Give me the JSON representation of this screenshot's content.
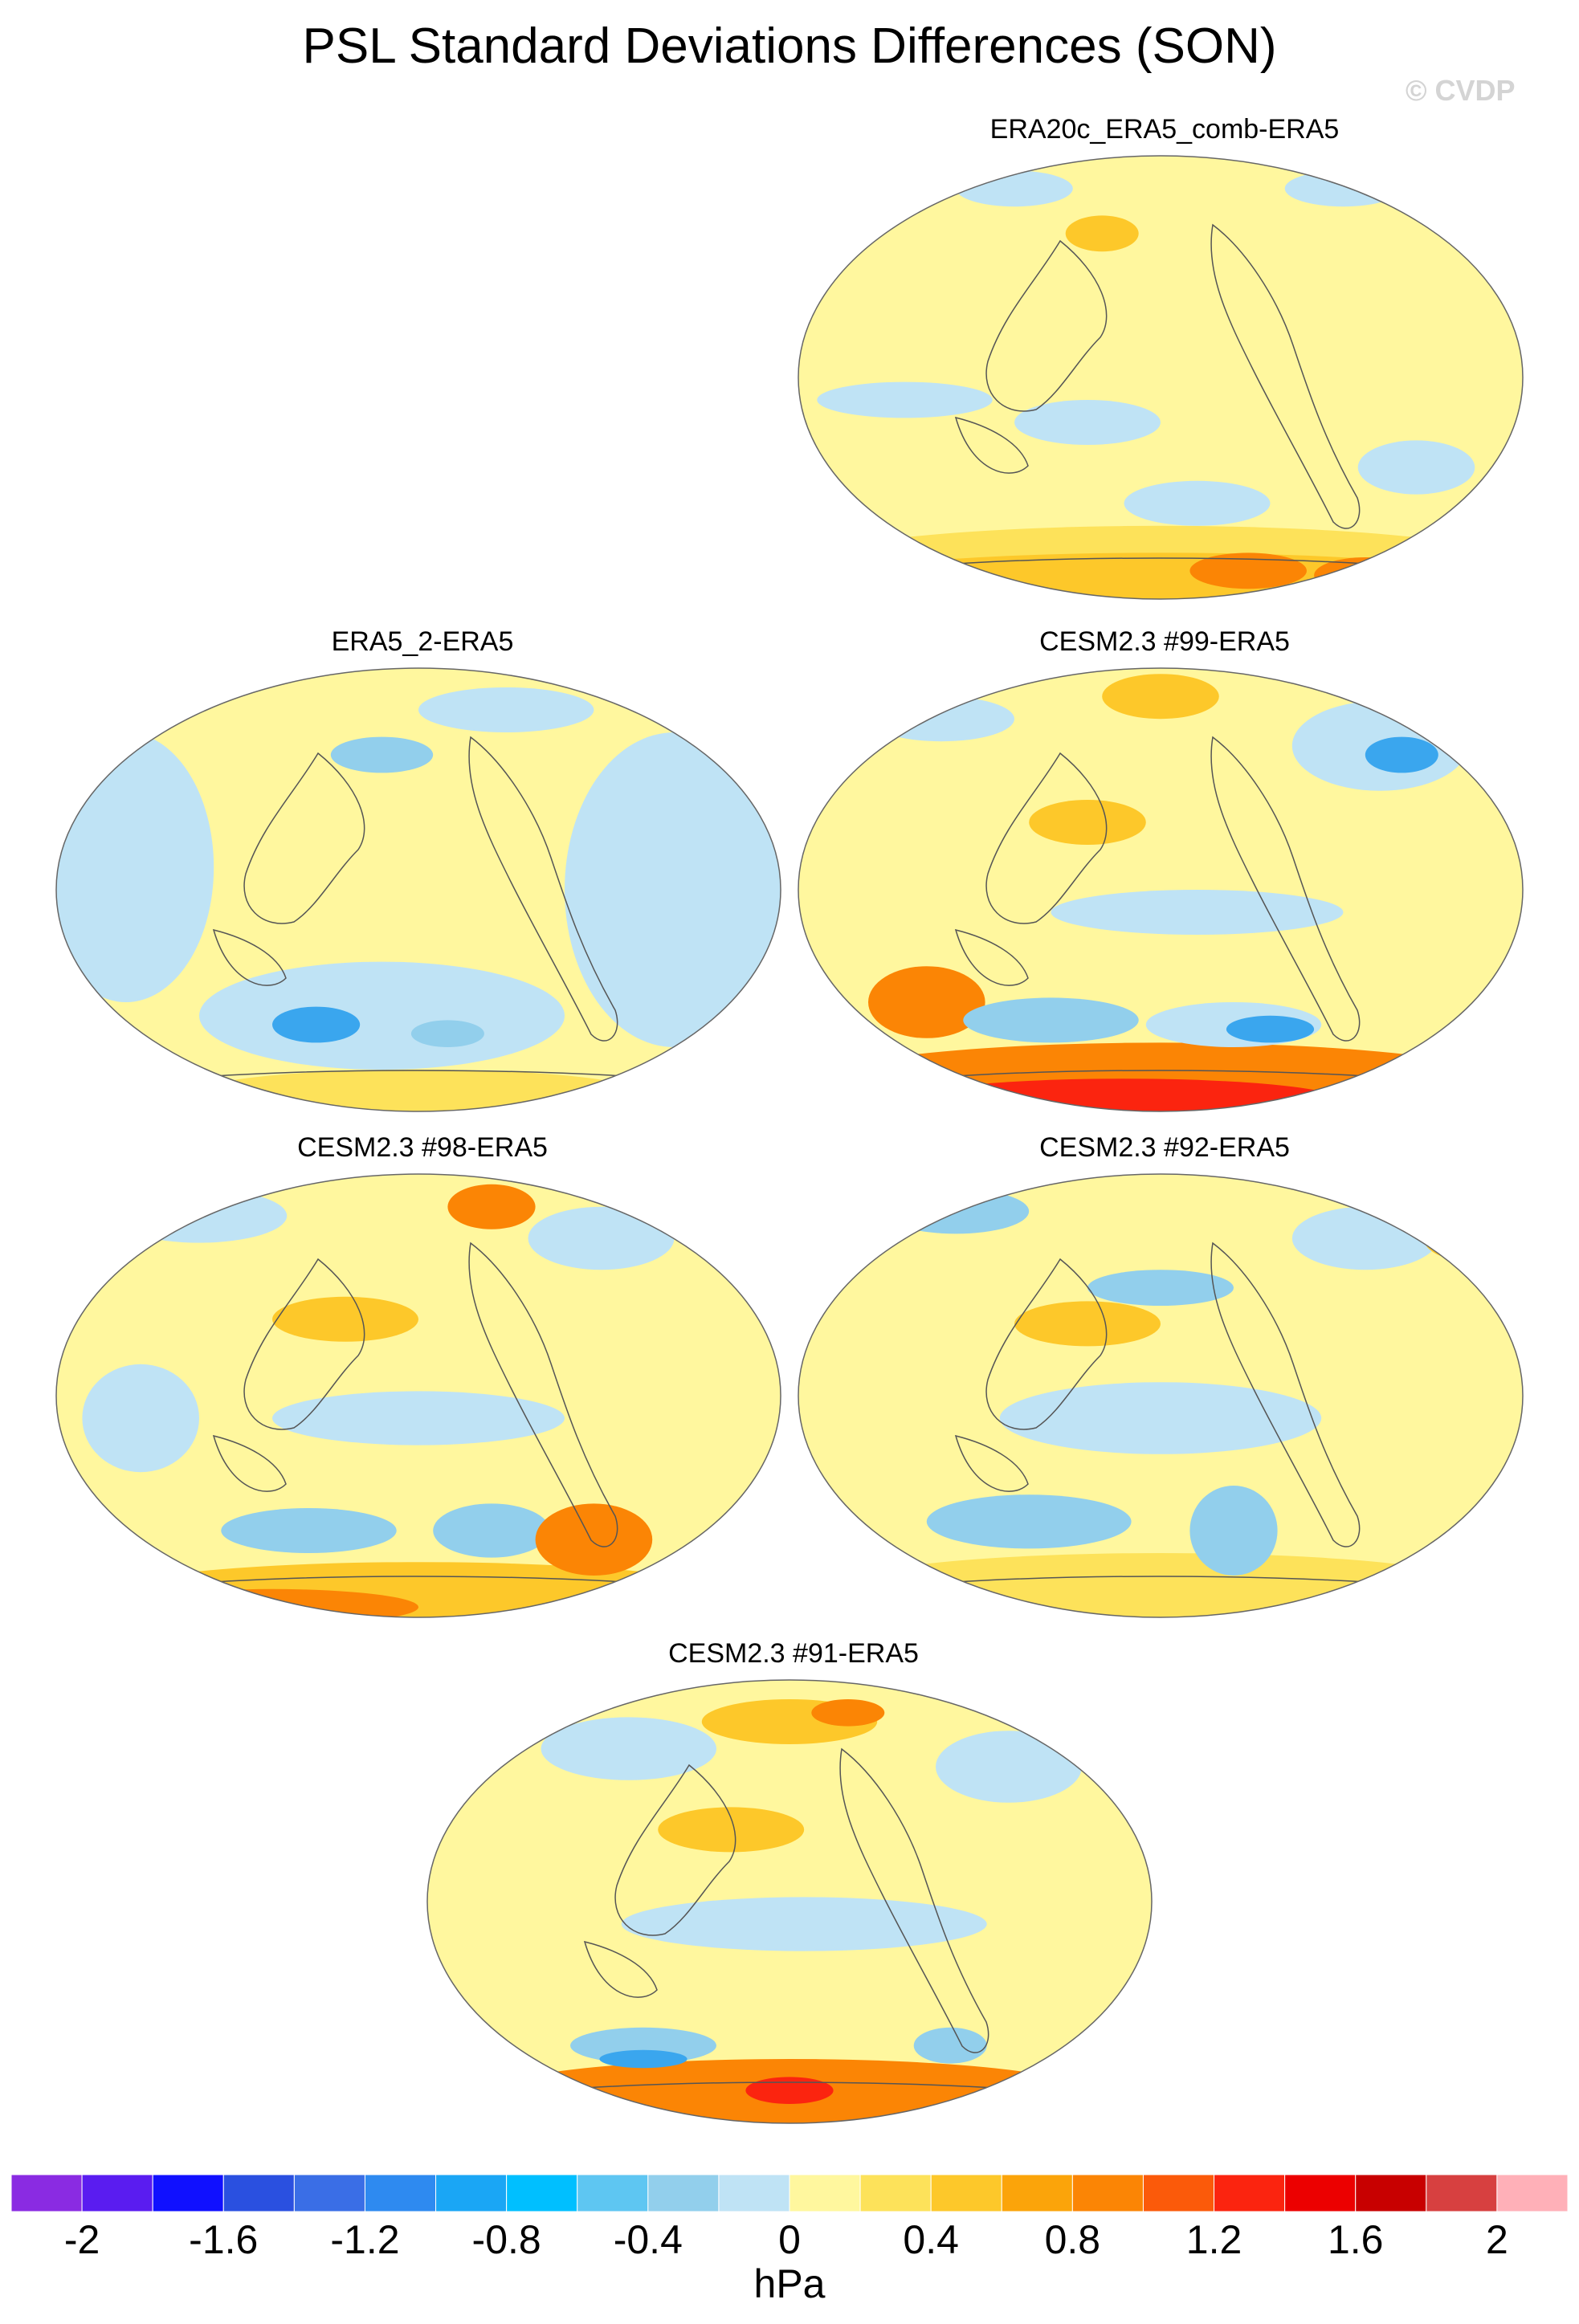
{
  "title": "PSL Standard Deviations Differences (SON)",
  "watermark": "© CVDP",
  "panels": [
    {
      "id": "p1",
      "title": "ERA20c_ERA5_comb-ERA5"
    },
    {
      "id": "p2",
      "title": "ERA5_2-ERA5"
    },
    {
      "id": "p3",
      "title": "CESM2.3 #99-ERA5"
    },
    {
      "id": "p4",
      "title": "CESM2.3 #98-ERA5"
    },
    {
      "id": "p5",
      "title": "CESM2.3 #92-ERA5"
    },
    {
      "id": "p6",
      "title": "CESM2.3 #91-ERA5"
    }
  ],
  "colorbar": {
    "unit": "hPa",
    "tick_labels": [
      "-2",
      "-1.6",
      "-1.2",
      "-0.8",
      "-0.4",
      "0",
      "0.4",
      "0.8",
      "1.2",
      "1.6",
      "2"
    ],
    "colors": [
      "#8a2be2",
      "#5a1cf0",
      "#1010ff",
      "#2a50e0",
      "#3a6ee6",
      "#2e8af0",
      "#1aa6f5",
      "#00bfff",
      "#5ec6f2",
      "#92cfec",
      "#bfe3f5",
      "#fff79e",
      "#fde25a",
      "#fdc82a",
      "#fba40a",
      "#fb8505",
      "#fb5a0a",
      "#fb240f",
      "#ec0000",
      "#c80000",
      "#d74040",
      "#ffb0b8"
    ]
  },
  "map_colors": {
    "ocean_base": "#fff79e",
    "neg_light": "#bfe3f5",
    "neg_mid": "#92cfec",
    "neg_strong": "#3aa6ee",
    "pos_light": "#fde25a",
    "pos_mid": "#fdc82a",
    "pos_strong": "#fb8505",
    "pos_extreme": "#fb240f",
    "coast": "#555555"
  }
}
